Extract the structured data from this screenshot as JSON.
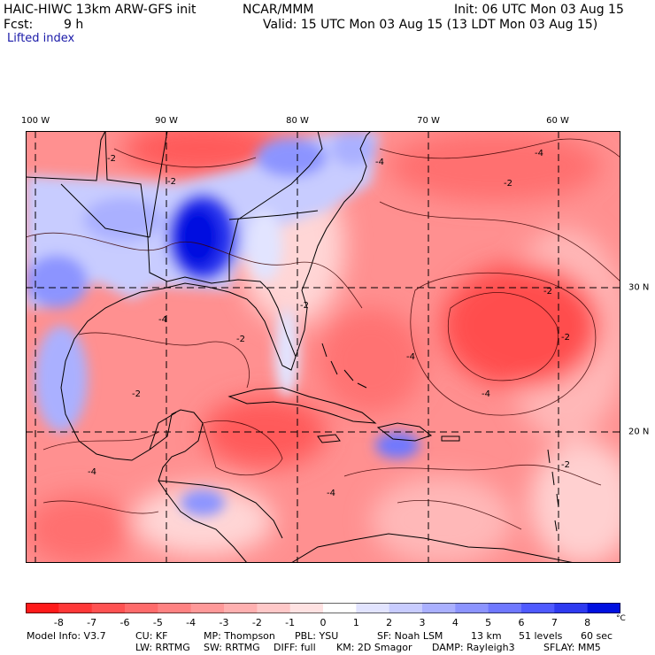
{
  "header": {
    "model_title": "HAIC-HIWC 13km ARW-GFS init",
    "org": "NCAR/MMM",
    "fcst_label": "Fcst:",
    "fcst_value": "9 h",
    "init": "Init: 06 UTC Mon 03 Aug 15",
    "valid": "Valid: 15 UTC Mon 03 Aug 15 (13 LDT Mon 03 Aug 15)",
    "field_name": "Lifted index"
  },
  "map": {
    "lon_labels": [
      "100 W",
      "90 W",
      "80 W",
      "70 W",
      "60 W"
    ],
    "lat_labels": [
      "30 N",
      "20 N"
    ],
    "contour_labels": [
      "-2",
      "-4",
      "-2",
      "-4",
      "-2",
      "-4",
      "-2",
      "-2",
      "-2",
      "-4",
      "-2",
      "-4",
      "-2",
      "-4",
      "-2",
      "-4"
    ]
  },
  "colorbar": {
    "tick_labels": [
      "-8",
      "-7",
      "-6",
      "-5",
      "-4",
      "-3",
      "-2",
      "-1",
      "0",
      "1",
      "2",
      "3",
      "4",
      "5",
      "6",
      "7",
      "8"
    ],
    "unit": "°C",
    "colors": [
      "#ff1a1a",
      "#ff3838",
      "#ff5252",
      "#ff6b6b",
      "#ff8282",
      "#ff9999",
      "#ffb0b0",
      "#ffc8c8",
      "#ffe2e2",
      "#ffffff",
      "#e2e4ff",
      "#c8ccff",
      "#aab0ff",
      "#8c94ff",
      "#6f78ff",
      "#4f5aff",
      "#2e3af0",
      "#0010e0"
    ]
  },
  "footer": {
    "line1": [
      "Model Info: V3.7",
      "CU: KF",
      "MP: Thompson",
      "PBL: YSU",
      "SF: Noah LSM",
      "13 km",
      "51 levels",
      "60 sec"
    ],
    "line2": [
      "LW: RRTMG",
      "SW: RRTMG",
      "DIFF: full",
      "KM: 2D Smagor",
      "DAMP: Rayleigh3",
      "SFLAY: MM5"
    ]
  }
}
